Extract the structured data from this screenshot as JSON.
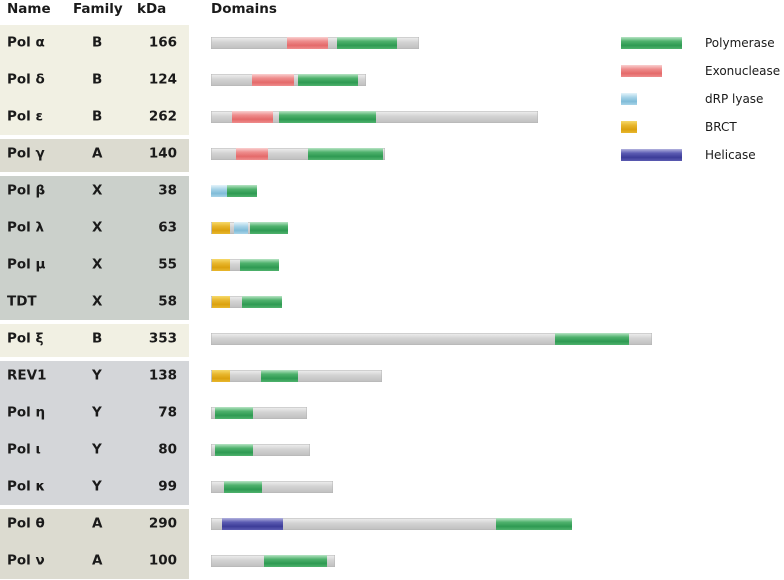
{
  "headers": {
    "name": "Name",
    "family": "Family",
    "kda": "kDa",
    "domains": "Domains"
  },
  "colors": {
    "polymerase": [
      "#b8e4c4",
      "#2e9a52",
      "#4fb26d"
    ],
    "exonuclease": [
      "#f9d0d0",
      "#e46a6a",
      "#ee8c8c"
    ],
    "drp_lyase": [
      "#e4f3fa",
      "#7fbcd8",
      "#a8d4e8"
    ],
    "brct": [
      "#f6d96a",
      "#dba10e",
      "#e8b72e"
    ],
    "helicase": [
      "#b3b3de",
      "#3c3c98",
      "#5b5bb2"
    ]
  },
  "groups": [
    {
      "rows": [
        0,
        3
      ],
      "color": "#f1f0e3"
    },
    {
      "rows": [
        3,
        4
      ],
      "color": "#dcdbd0"
    },
    {
      "rows": [
        4,
        8
      ],
      "color": "#cbd0cb"
    },
    {
      "rows": [
        8,
        9
      ],
      "color": "#f1f0e3"
    },
    {
      "rows": [
        9,
        13
      ],
      "color": "#d4d6d9"
    },
    {
      "rows": [
        13,
        15
      ],
      "color": "#dcdbd0"
    }
  ],
  "rows": [
    {
      "name": "Pol α",
      "family": "B",
      "kda": "166",
      "bar": [
        211,
        419
      ],
      "domains": [
        [
          "exonuclease",
          287,
          328
        ],
        [
          "polymerase",
          337,
          397
        ]
      ]
    },
    {
      "name": "Pol δ",
      "family": "B",
      "kda": "124",
      "bar": [
        211,
        366
      ],
      "domains": [
        [
          "exonuclease",
          252,
          294
        ],
        [
          "polymerase",
          298,
          358
        ]
      ]
    },
    {
      "name": "Pol ε",
      "family": "B",
      "kda": "262",
      "bar": [
        211,
        538
      ],
      "domains": [
        [
          "exonuclease",
          232,
          273
        ],
        [
          "polymerase",
          279,
          376
        ]
      ]
    },
    {
      "name": "Pol γ",
      "family": "A",
      "kda": "140",
      "bar": [
        211,
        385
      ],
      "domains": [
        [
          "exonuclease",
          236,
          268
        ],
        [
          "polymerase",
          308,
          383
        ]
      ]
    },
    {
      "name": "Pol β",
      "family": "X",
      "kda": "38",
      "bar": [
        211,
        257
      ],
      "domains": [
        [
          "drp_lyase",
          211,
          227
        ],
        [
          "polymerase",
          227,
          257
        ]
      ]
    },
    {
      "name": "Pol λ",
      "family": "X",
      "kda": "63",
      "bar": [
        211,
        288
      ],
      "domains": [
        [
          "brct",
          212,
          230
        ],
        [
          "drp_lyase",
          234,
          248
        ],
        [
          "polymerase",
          250,
          288
        ]
      ]
    },
    {
      "name": "Pol μ",
      "family": "X",
      "kda": "55",
      "bar": [
        211,
        279
      ],
      "domains": [
        [
          "brct",
          212,
          230
        ],
        [
          "polymerase",
          240,
          279
        ]
      ]
    },
    {
      "name": "TDT",
      "family": "X",
      "kda": "58",
      "bar": [
        211,
        282
      ],
      "domains": [
        [
          "brct",
          212,
          230
        ],
        [
          "polymerase",
          242,
          282
        ]
      ]
    },
    {
      "name": "Pol ξ",
      "family": "B",
      "kda": "353",
      "bar": [
        211,
        652
      ],
      "domains": [
        [
          "polymerase",
          555,
          629
        ]
      ]
    },
    {
      "name": "REV1",
      "family": "Y",
      "kda": "138",
      "bar": [
        211,
        382
      ],
      "domains": [
        [
          "brct",
          212,
          230
        ],
        [
          "polymerase",
          261,
          298
        ]
      ]
    },
    {
      "name": "Pol η",
      "family": "Y",
      "kda": "78",
      "bar": [
        211,
        307
      ],
      "domains": [
        [
          "polymerase",
          215,
          253
        ]
      ]
    },
    {
      "name": "Pol ι",
      "family": "Y",
      "kda": "80",
      "bar": [
        211,
        310
      ],
      "domains": [
        [
          "polymerase",
          215,
          253
        ]
      ]
    },
    {
      "name": "Pol κ",
      "family": "Y",
      "kda": "99",
      "bar": [
        211,
        333
      ],
      "domains": [
        [
          "polymerase",
          224,
          262
        ]
      ]
    },
    {
      "name": "Pol θ",
      "family": "A",
      "kda": "290",
      "bar": [
        211,
        572
      ],
      "domains": [
        [
          "helicase",
          222,
          283
        ],
        [
          "polymerase",
          496,
          572
        ]
      ]
    },
    {
      "name": "Pol ν",
      "family": "A",
      "kda": "100",
      "bar": [
        211,
        335
      ],
      "domains": [
        [
          "polymerase",
          264,
          327
        ]
      ]
    }
  ],
  "legend": [
    {
      "key": "polymerase",
      "label": "Polymerase",
      "swatch": [
        621,
        682
      ]
    },
    {
      "key": "exonuclease",
      "label": "Exonuclease",
      "swatch": [
        621,
        662
      ]
    },
    {
      "key": "drp_lyase",
      "label": "dRP lyase",
      "swatch": [
        621,
        637
      ]
    },
    {
      "key": "brct",
      "label": "BRCT",
      "swatch": [
        621,
        637
      ]
    },
    {
      "key": "helicase",
      "label": "Helicase",
      "swatch": [
        621,
        682
      ]
    }
  ]
}
